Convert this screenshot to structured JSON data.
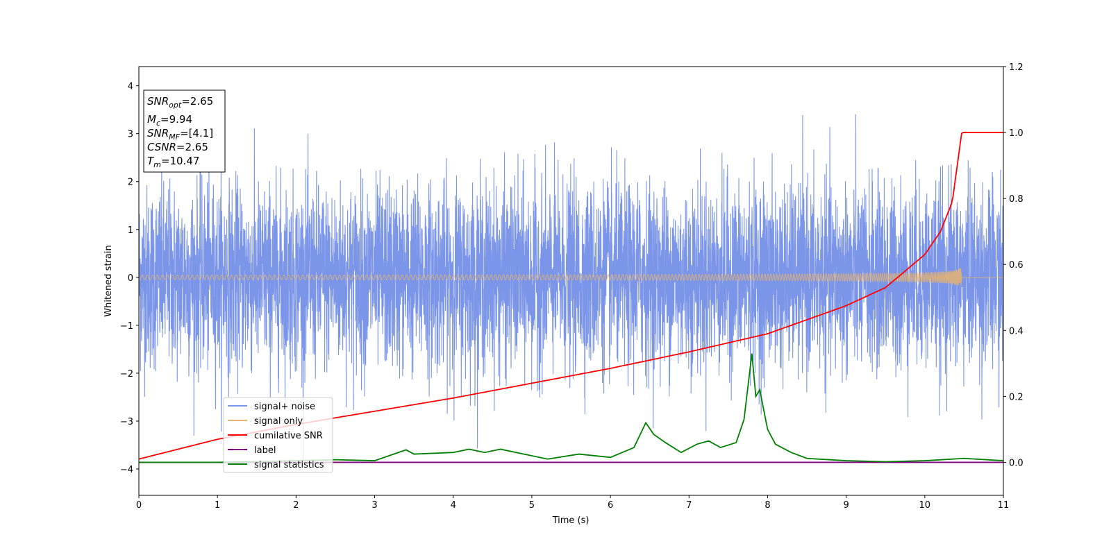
{
  "chart_data": {
    "type": "line",
    "xlabel": "Time (s)",
    "ylabel": "Whitened strain",
    "xlim": [
      0,
      11
    ],
    "ylim_left": [
      -4.55,
      4.4
    ],
    "ylim_right": [
      -0.1,
      1.2
    ],
    "x_ticks": [
      0,
      1,
      2,
      3,
      4,
      5,
      6,
      7,
      8,
      9,
      10,
      11
    ],
    "y_ticks_left": [
      4,
      3,
      2,
      1,
      0,
      -1,
      -2,
      -3,
      -4
    ],
    "y_ticks_right": [
      1.2,
      1.0,
      0.8,
      0.6,
      0.4,
      0.2,
      0.0
    ],
    "y_tick_labels_left": [
      "4",
      "3",
      "2",
      "1",
      "0",
      "−1",
      "−2",
      "−3",
      "−4"
    ],
    "y_tick_labels_right": [
      "1.2",
      "1.0",
      "0.8",
      "0.6",
      "0.4",
      "0.2",
      "0.0"
    ],
    "legend_position": "lower-left",
    "info_box": {
      "snr_opt": "=2.65",
      "mc": "=9.94",
      "snr_mf": "=[4.1]",
      "csnr": "=2.65",
      "tm": "=10.47"
    },
    "series": [
      {
        "name": "signal+ noise",
        "color": "#7b95e8",
        "axis": "left",
        "description_values": {
          "x_range": [
            0,
            11
          ],
          "typical_abs_peak": 2.3,
          "max": 4.0,
          "min": -3.8
        }
      },
      {
        "name": "signal only",
        "color": "#e8b36e",
        "axis": "left",
        "chirp": {
          "t_merge": 10.47,
          "max_amp": 0.35,
          "start_amp": 0.02
        }
      },
      {
        "name": "cumilative SNR",
        "color": "#ff0000",
        "axis": "right",
        "x": [
          0,
          1,
          2,
          3,
          4,
          5,
          6,
          7,
          8,
          9,
          9.5,
          10,
          10.2,
          10.35,
          10.47,
          11
        ],
        "y": [
          0.01,
          0.07,
          0.115,
          0.155,
          0.195,
          0.24,
          0.285,
          0.335,
          0.39,
          0.475,
          0.53,
          0.63,
          0.7,
          0.79,
          1.0,
          1.0
        ]
      },
      {
        "name": "label",
        "color": "#800080",
        "axis": "right",
        "x": [
          0,
          11
        ],
        "y": [
          0,
          0
        ]
      },
      {
        "name": "signal statistics",
        "color": "#008000",
        "axis": "right",
        "x": [
          0,
          1,
          2,
          2.5,
          3,
          3.4,
          3.5,
          4,
          4.2,
          4.4,
          4.6,
          4.9,
          5.2,
          5.6,
          6.0,
          6.3,
          6.45,
          6.55,
          6.7,
          6.9,
          7.1,
          7.25,
          7.4,
          7.6,
          7.7,
          7.8,
          7.85,
          7.9,
          8.0,
          8.1,
          8.3,
          8.5,
          9,
          9.5,
          10,
          10.5,
          11
        ],
        "y": [
          0.0,
          0.0,
          0.005,
          0.008,
          0.005,
          0.038,
          0.025,
          0.03,
          0.04,
          0.03,
          0.04,
          0.025,
          0.01,
          0.025,
          0.015,
          0.045,
          0.12,
          0.085,
          0.06,
          0.03,
          0.055,
          0.065,
          0.045,
          0.06,
          0.13,
          0.33,
          0.2,
          0.22,
          0.1,
          0.055,
          0.03,
          0.012,
          0.005,
          0.002,
          0.005,
          0.012,
          0.005
        ]
      }
    ]
  }
}
